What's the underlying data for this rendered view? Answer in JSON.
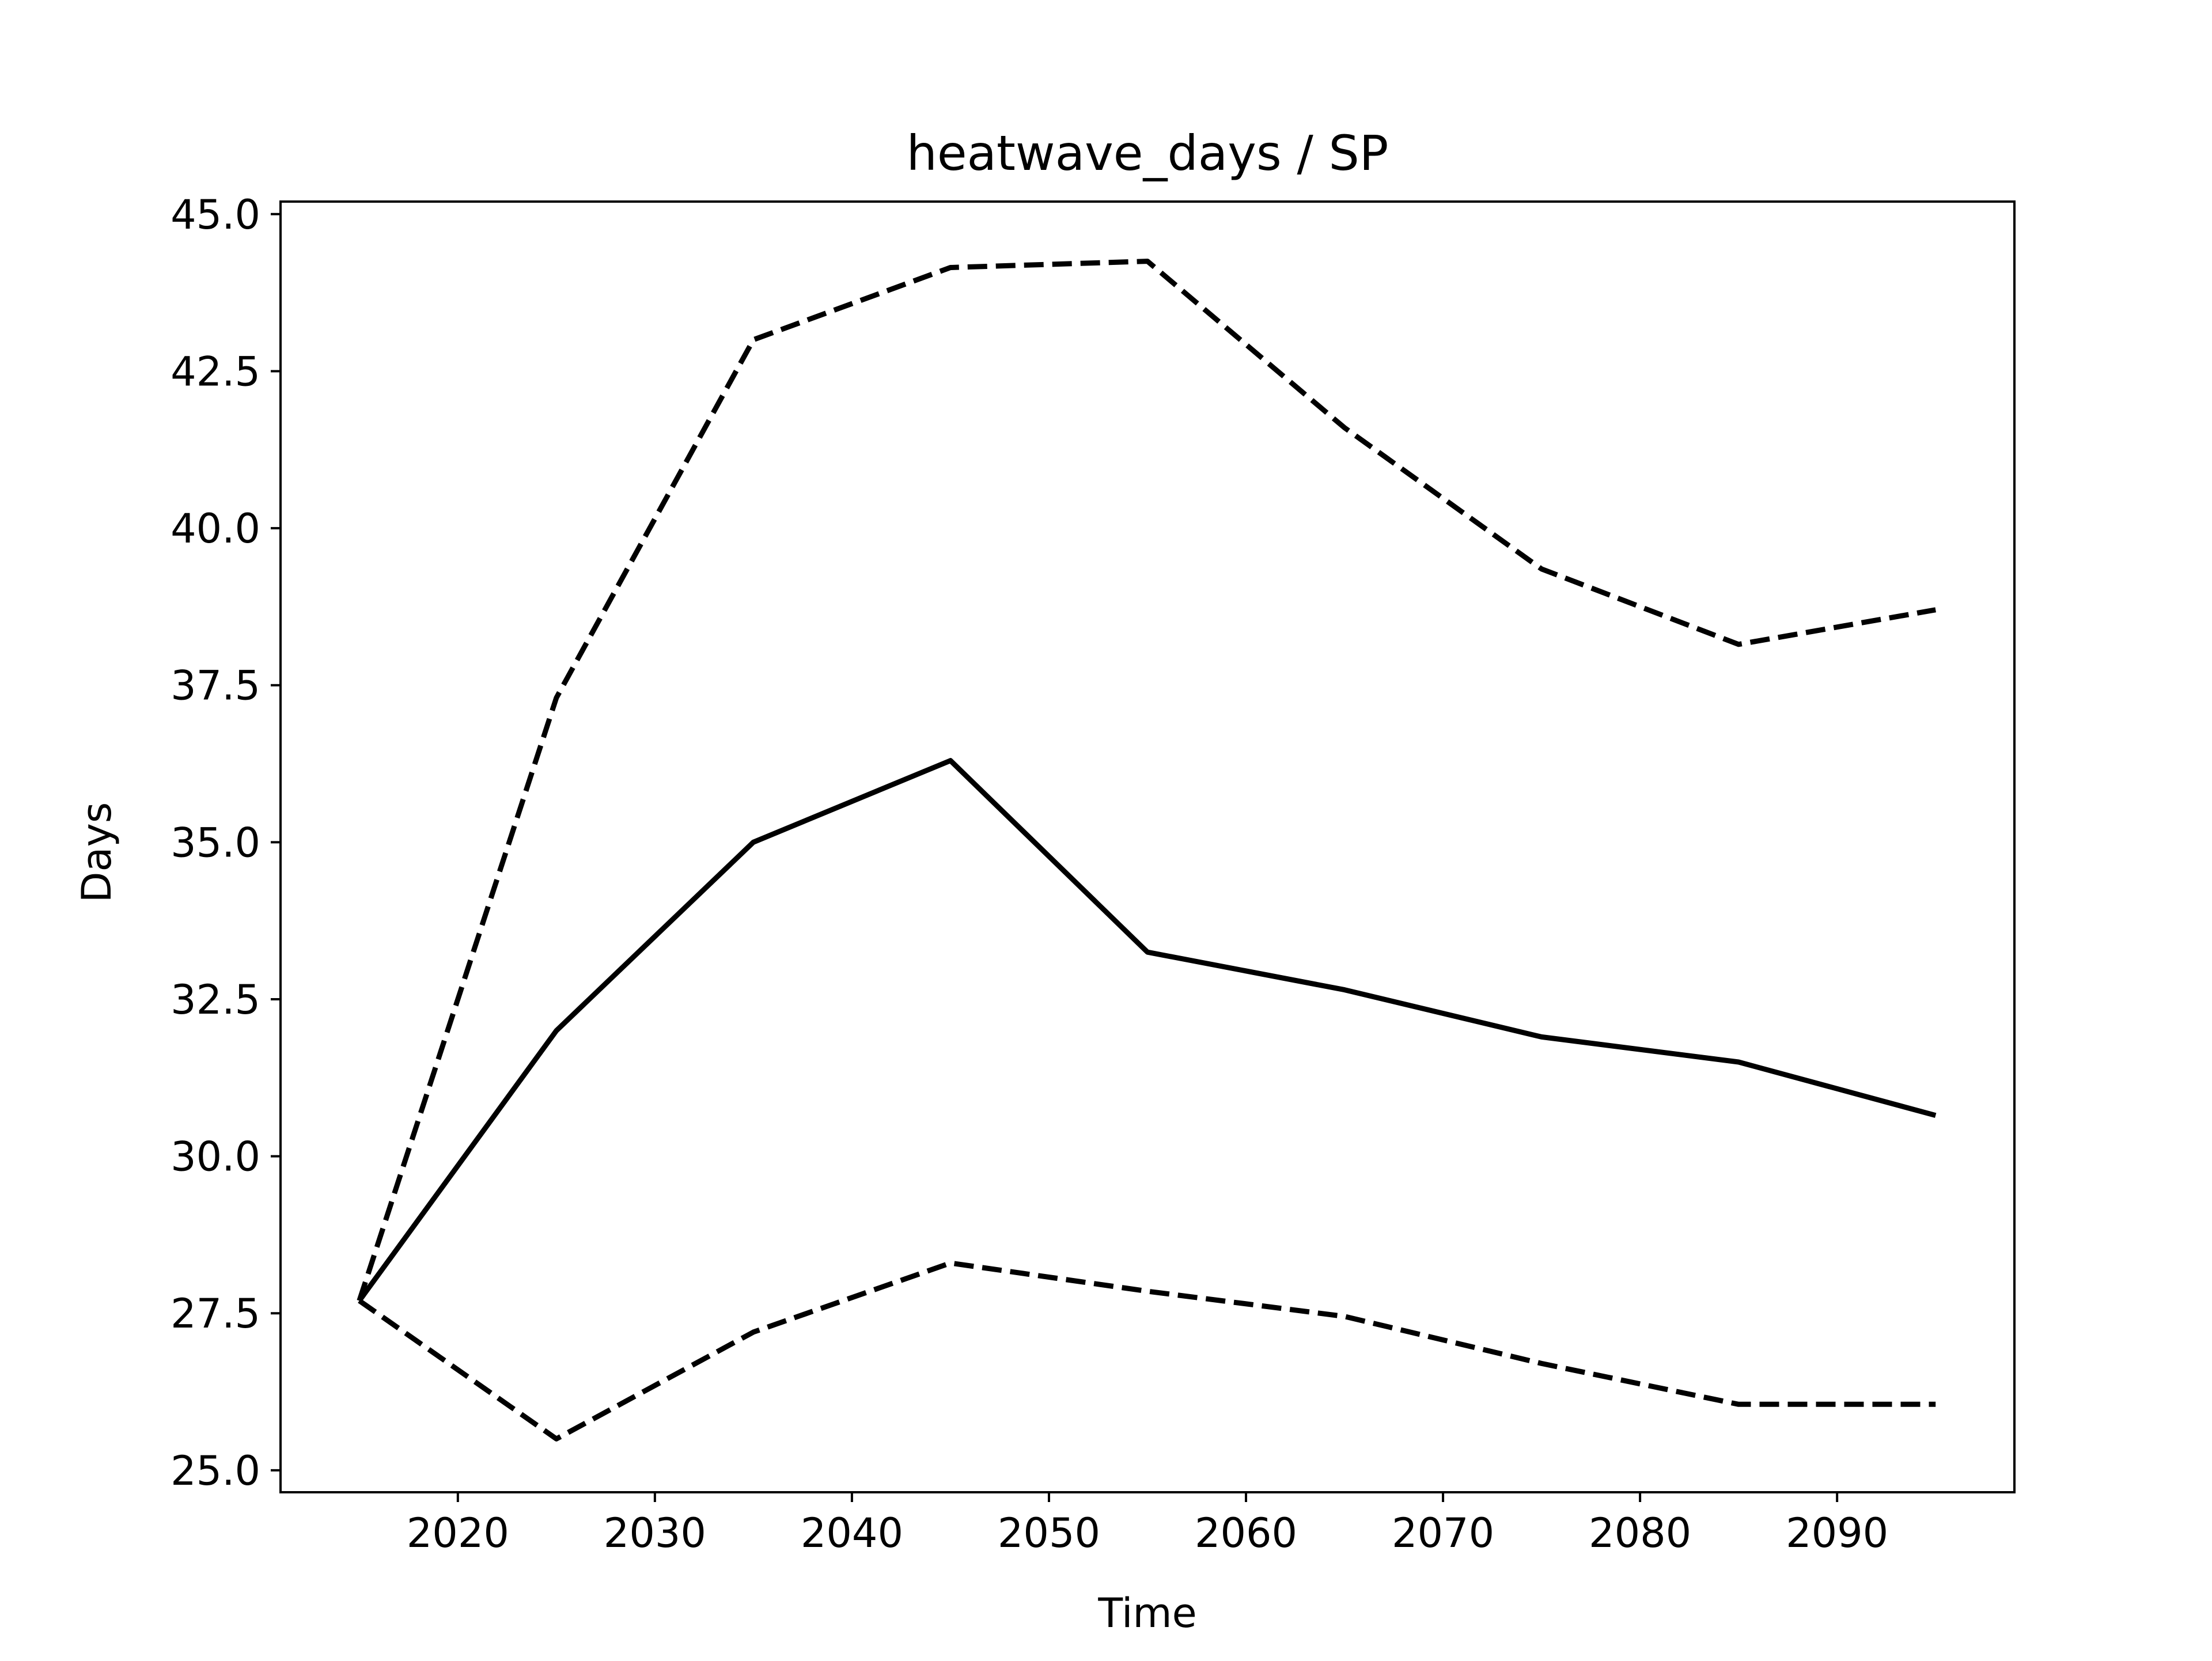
{
  "chart_data": {
    "type": "line",
    "title": "heatwave_days / SP",
    "xlabel": "Time",
    "ylabel": "Days",
    "xlim": [
      2011,
      2099
    ],
    "ylim": [
      24.65,
      45.2
    ],
    "x_ticks": [
      2020,
      2030,
      2040,
      2050,
      2060,
      2070,
      2080,
      2090
    ],
    "y_ticks": [
      25.0,
      27.5,
      30.0,
      32.5,
      35.0,
      37.5,
      40.0,
      42.5,
      45.0
    ],
    "x_tick_labels": [
      "2020",
      "2030",
      "2040",
      "2050",
      "2060",
      "2070",
      "2080",
      "2090"
    ],
    "y_tick_labels": [
      "25.0",
      "27.5",
      "30.0",
      "32.5",
      "35.0",
      "37.5",
      "40.0",
      "42.5",
      "45.0"
    ],
    "grid": false,
    "legend": "none",
    "x": [
      2015,
      2025,
      2035,
      2045,
      2055,
      2065,
      2075,
      2085,
      2095
    ],
    "series": [
      {
        "style": "dashed",
        "color": "#000000",
        "values": [
          27.7,
          37.3,
          43.0,
          44.15,
          44.25,
          41.6,
          39.35,
          38.15,
          38.7
        ]
      },
      {
        "style": "solid",
        "color": "#000000",
        "values": [
          27.7,
          32.0,
          35.0,
          36.3,
          33.25,
          32.65,
          31.9,
          31.5,
          30.65
        ]
      },
      {
        "style": "dashed",
        "color": "#000000",
        "values": [
          27.7,
          25.5,
          27.2,
          28.3,
          27.85,
          27.45,
          26.7,
          26.05,
          26.05
        ]
      }
    ]
  }
}
